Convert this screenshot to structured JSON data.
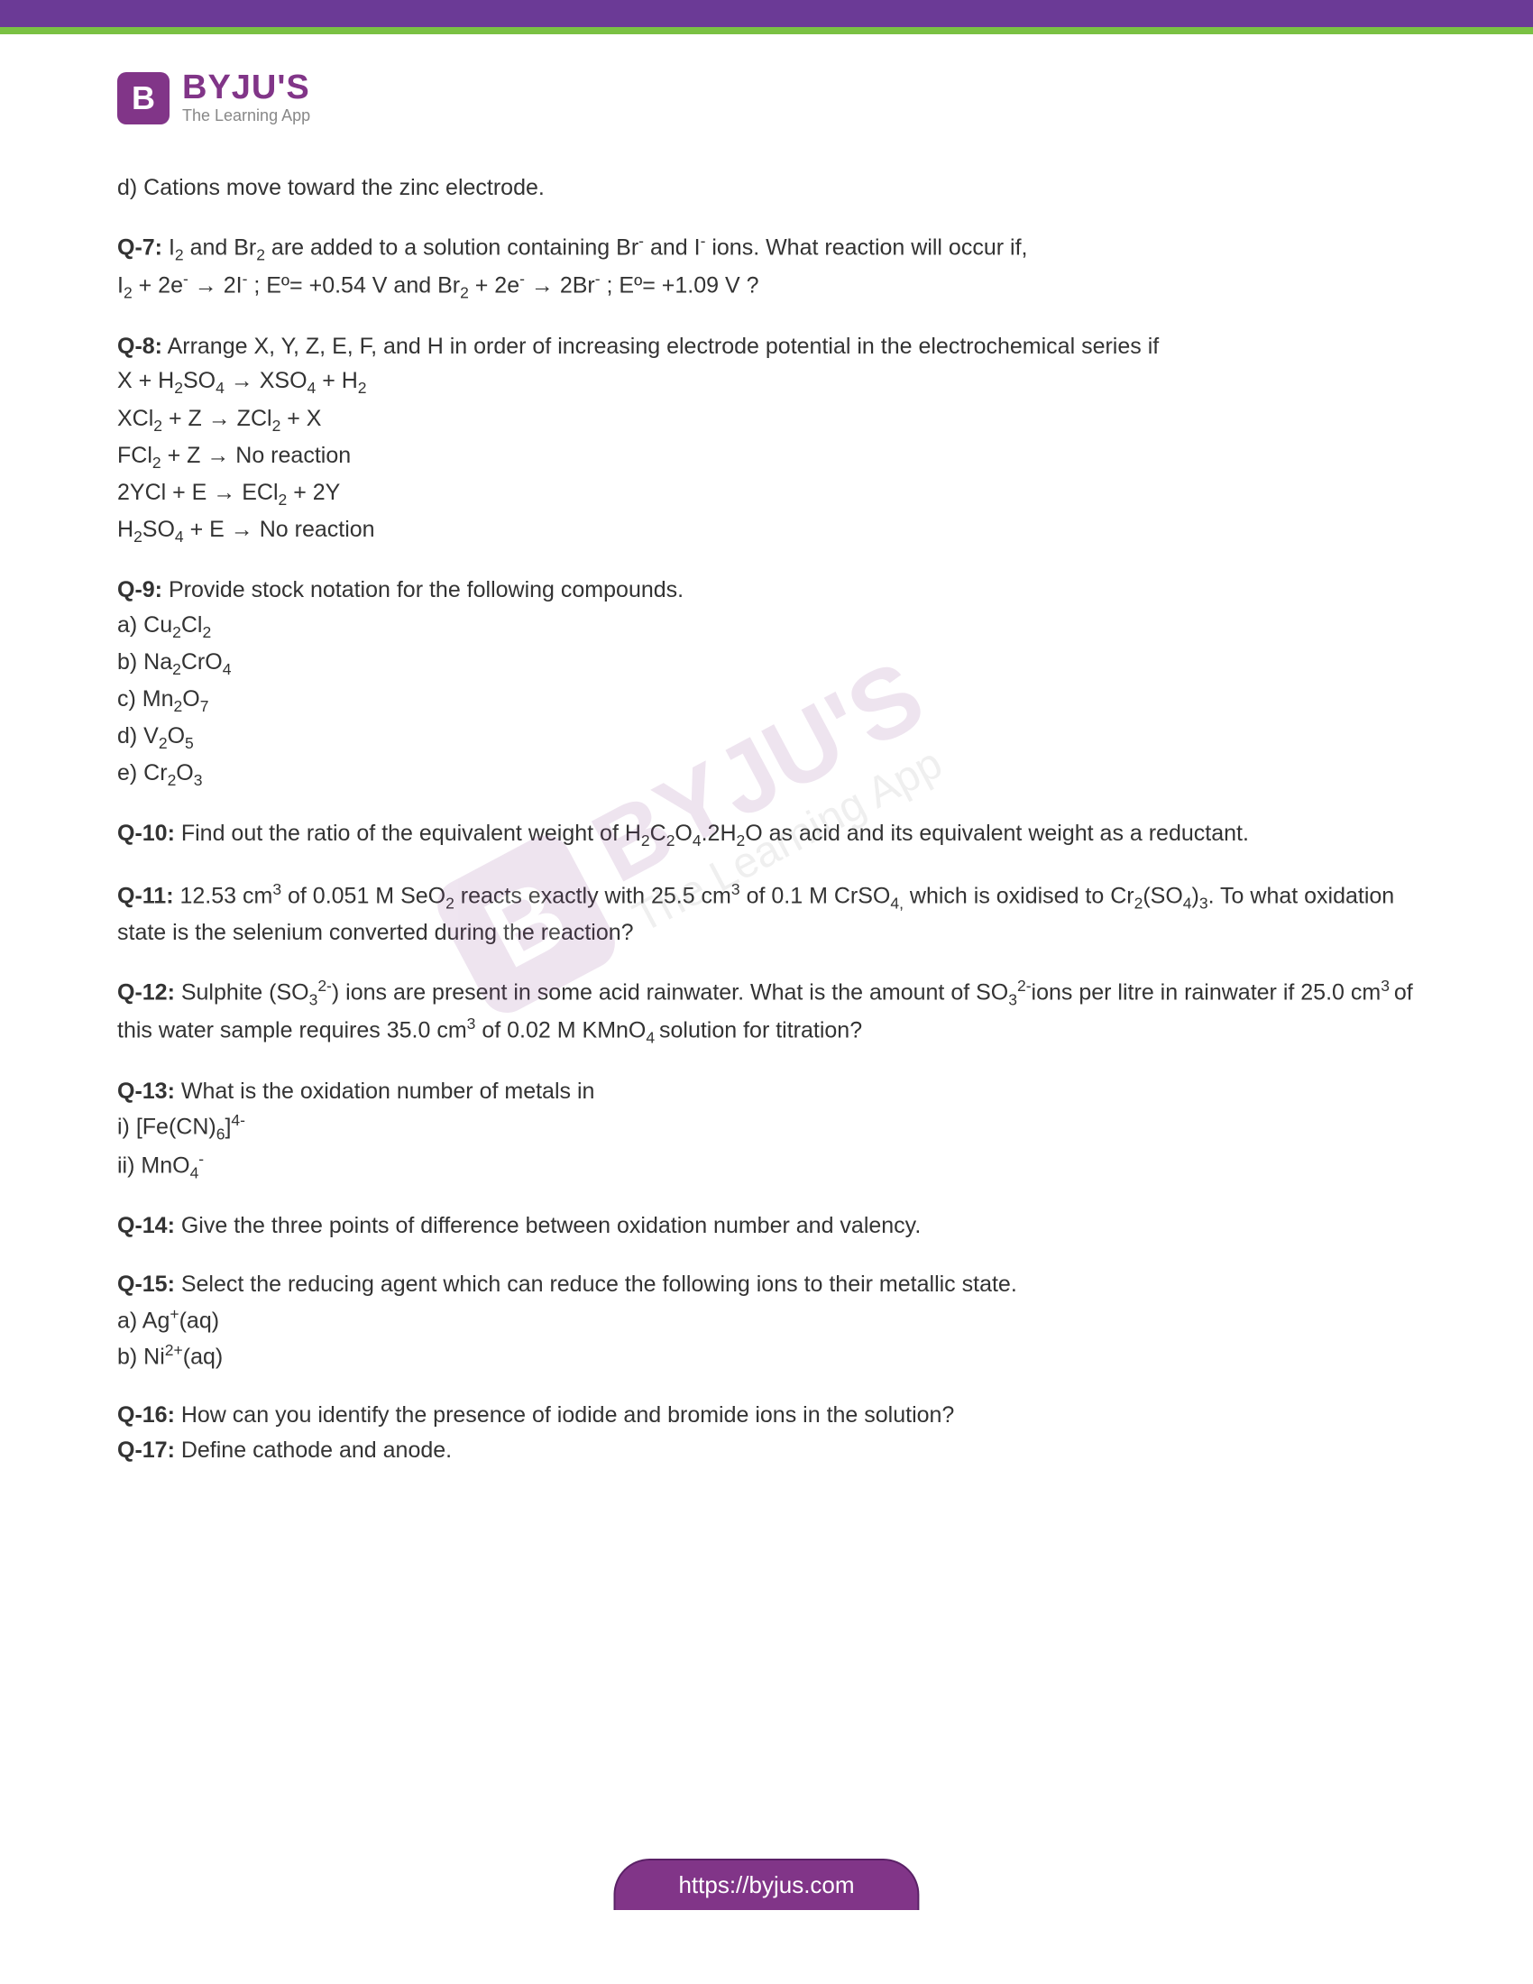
{
  "brand": {
    "logo_letter": "B",
    "name": "BYJU'S",
    "tagline": "The Learning App",
    "primary_color": "#813588",
    "accent_green": "#7ac143",
    "topbar_color": "#6b3a96"
  },
  "footer": {
    "url_text": "https://byjus.com"
  },
  "watermark": {
    "letter": "B",
    "name": "BYJU'S",
    "tagline": "The Learning App"
  },
  "content": {
    "opt_d": "d) Cations move toward the zinc electrode.",
    "q7_label": "Q-7:",
    "q7_text_part1": " I",
    "q7_text_part2": " and Br",
    "q7_text_part3": " are added to a solution containing Br",
    "q7_text_part4": " and I",
    "q7_text_part5": " ions. What reaction will occur if,",
    "q7_line2_a": "I",
    "q7_line2_b": " + 2e",
    "q7_line2_c": " → 2I",
    "q7_line2_d": " ; Eº= +0.54 V and Br",
    "q7_line2_e": " + 2e",
    "q7_line2_f": " → 2Br",
    "q7_line2_g": " ; Eº= +1.09 V ?",
    "q8_label": "Q-8:",
    "q8_text": " Arrange X, Y, Z, E, F, and H in order of increasing electrode potential in the electrochemical series if",
    "q8_r1_a": "X + H",
    "q8_r1_b": "SO",
    "q8_r1_c": " → XSO",
    "q8_r1_d": " + H",
    "q8_r2_a": "XCl",
    "q8_r2_b": " + Z → ZCl",
    "q8_r2_c": " + X",
    "q8_r3_a": "FCl",
    "q8_r3_b": " + Z  → No reaction",
    "q8_r4_a": "2YCl + E → ECl",
    "q8_r4_b": " + 2Y",
    "q8_r5_a": "H",
    "q8_r5_b": "SO",
    "q8_r5_c": " + E → No reaction",
    "q9_label": "Q-9:",
    "q9_text": " Provide stock notation for the following compounds.",
    "q9_a_a": "a) Cu",
    "q9_a_b": "Cl",
    "q9_b_a": "b) Na",
    "q9_b_b": "CrO",
    "q9_c_a": "c) Mn",
    "q9_c_b": "O",
    "q9_d_a": "d) V",
    "q9_d_b": "O",
    "q9_e_a": "e) Cr",
    "q9_e_b": "O",
    "q10_label": "Q-10:",
    "q10_a": " Find out the ratio of the equivalent weight of H",
    "q10_b": "C",
    "q10_c": "O",
    "q10_d": ".2H",
    "q10_e": "O as acid and its equivalent weight as a reductant.",
    "q11_label": "Q-11:",
    "q11_a": " 12.53 cm",
    "q11_b": " of 0.051 M SeO",
    "q11_c": " reacts exactly with 25.5 cm",
    "q11_d": " of 0.1 M CrSO",
    "q11_e": " which is oxidised to Cr",
    "q11_f": "(SO",
    "q11_g": ")",
    "q11_h": ". To what oxidation state is the selenium converted during the reaction?",
    "q12_label": "Q-12:",
    "q12_a": " Sulphite (SO",
    "q12_b": ") ions are present in some acid rainwater. What is the amount of SO",
    "q12_c": "ions per litre in rainwater if 25.0 cm",
    "q12_d": " of this water sample requires 35.0 cm",
    "q12_e": " of 0.02 M KMnO",
    "q12_f": " solution for titration?",
    "q13_label": "Q-13:",
    "q13_text": " What is the oxidation number of metals in",
    "q13_i_a": "i) [Fe(CN)",
    "q13_i_b": "]",
    "q13_ii_a": "ii) MnO",
    "q14_label": "Q-14:",
    "q14_text": " Give the three points of difference between oxidation number and valency.",
    "q15_label": "Q-15:",
    "q15_text": " Select the reducing agent which can reduce the following ions to their metallic state.",
    "q15_a_a": "a) Ag",
    "q15_a_b": "(aq)",
    "q15_b_a": "b) Ni",
    "q15_b_b": "(aq)",
    "q16_label": "Q-16:",
    "q16_text": " How can you identify the presence of iodide and bromide ions in the solution?",
    "q17_label": "Q-17:",
    "q17_text": " Define cathode and anode."
  }
}
